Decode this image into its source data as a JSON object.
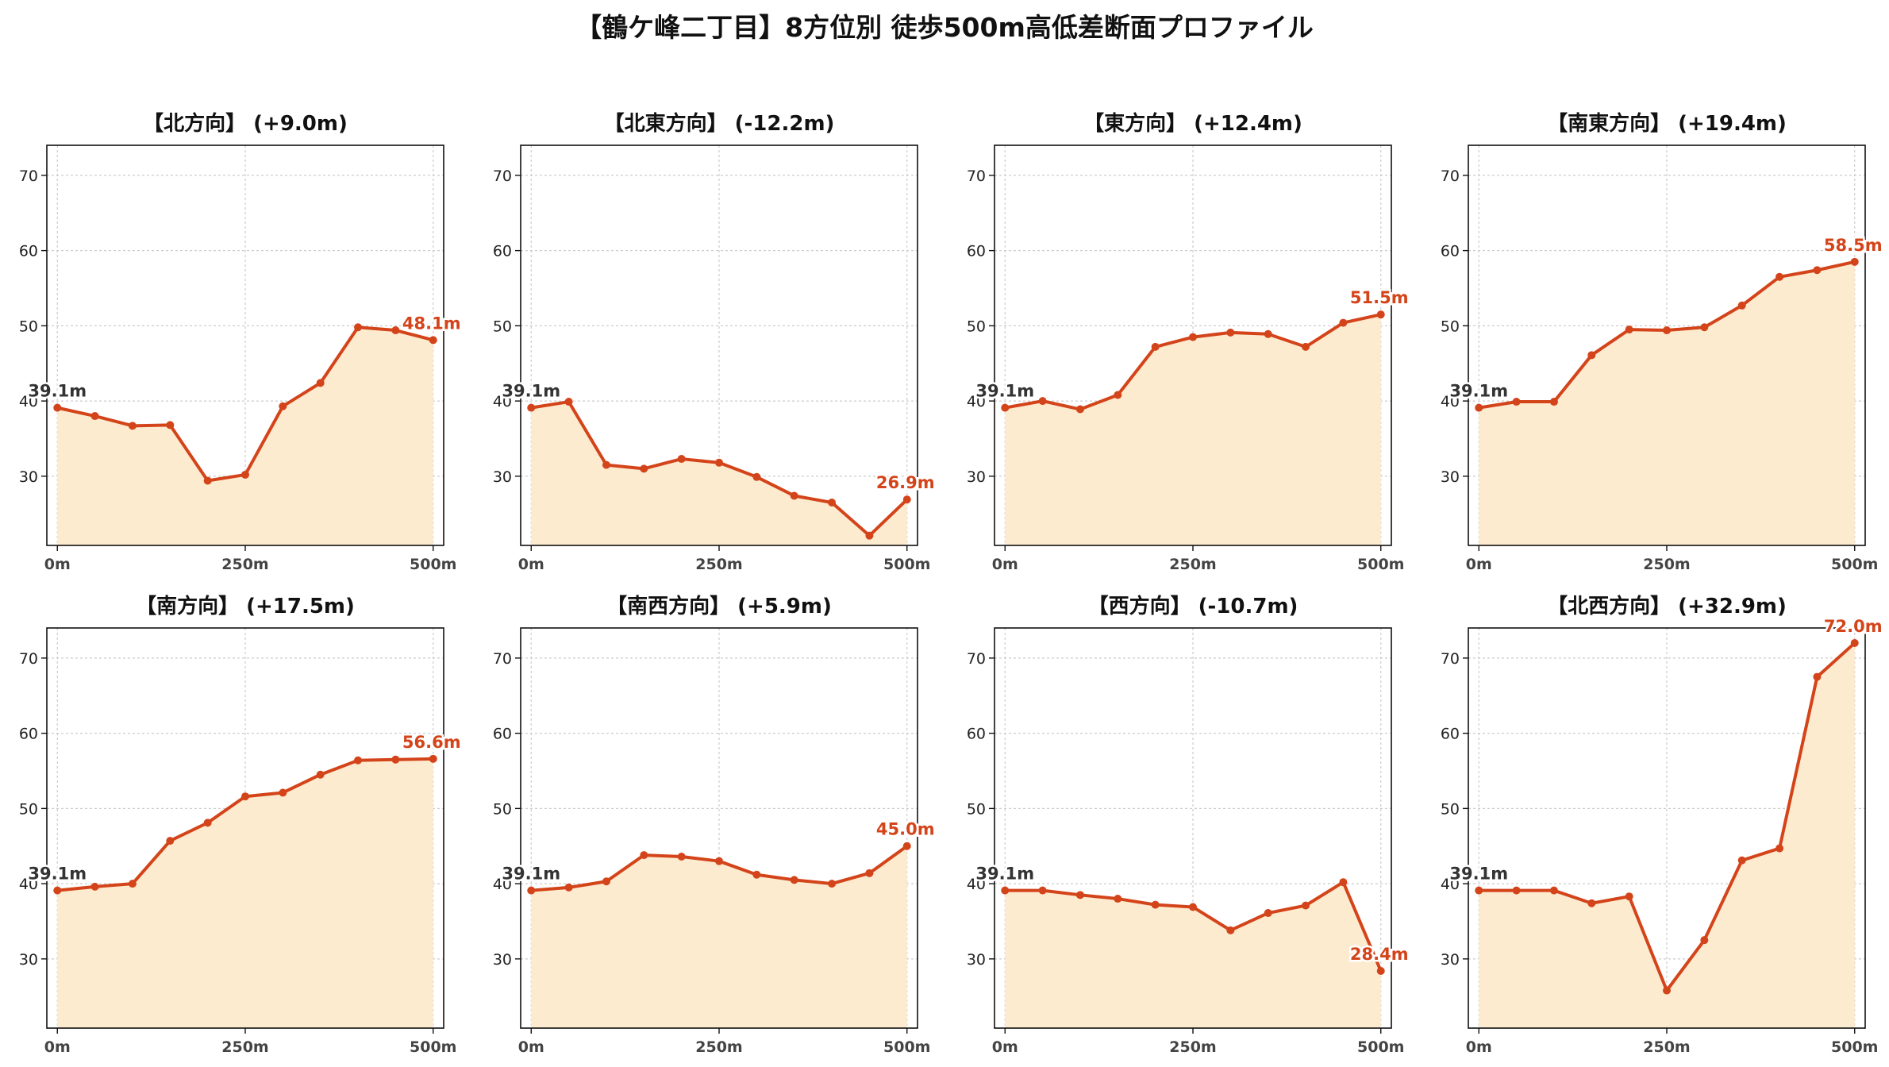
{
  "chart_data": {
    "title": "【鶴ケ峰二丁目】8方位別 徒歩500m高低差断面プロファイル",
    "type": "area",
    "colors": {
      "line": "#d4441a",
      "fill": "#fdebd0",
      "grid": "#cccccc",
      "start_label": "#333333",
      "end_label": "#d4441a"
    },
    "x": [
      0,
      50,
      100,
      150,
      200,
      250,
      300,
      350,
      400,
      450,
      500
    ],
    "xticks": [
      "0m",
      "250m",
      "500m"
    ],
    "xtick_values": [
      0,
      250,
      500
    ],
    "yticks": [
      "30",
      "40",
      "50",
      "60",
      "70"
    ],
    "ytick_values": [
      30,
      40,
      50,
      60,
      70
    ],
    "ylim": [
      20.8,
      74
    ],
    "xlim": [
      -14,
      514
    ],
    "grid": true,
    "panels": [
      {
        "title": "【北方向】 (+9.0m)",
        "start_label": "39.1m",
        "end_label": "48.1m",
        "values": [
          39.1,
          38.0,
          36.7,
          36.8,
          29.4,
          30.2,
          39.3,
          42.4,
          49.8,
          49.4,
          48.1
        ]
      },
      {
        "title": "【北東方向】 (-12.2m)",
        "start_label": "39.1m",
        "end_label": "26.9m",
        "values": [
          39.1,
          39.9,
          31.5,
          31.0,
          32.3,
          31.8,
          29.9,
          27.4,
          26.5,
          22.1,
          26.9
        ]
      },
      {
        "title": "【東方向】 (+12.4m)",
        "start_label": "39.1m",
        "end_label": "51.5m",
        "values": [
          39.1,
          40.0,
          38.9,
          40.8,
          47.2,
          48.5,
          49.1,
          48.9,
          47.2,
          50.4,
          51.5
        ]
      },
      {
        "title": "【南東方向】 (+19.4m)",
        "start_label": "39.1m",
        "end_label": "58.5m",
        "values": [
          39.1,
          39.9,
          39.9,
          46.1,
          49.5,
          49.4,
          49.8,
          52.7,
          56.5,
          57.4,
          58.5
        ]
      },
      {
        "title": "【南方向】 (+17.5m)",
        "start_label": "39.1m",
        "end_label": "56.6m",
        "values": [
          39.1,
          39.6,
          40.0,
          45.7,
          48.1,
          51.6,
          52.1,
          54.5,
          56.4,
          56.5,
          56.6
        ]
      },
      {
        "title": "【南西方向】 (+5.9m)",
        "start_label": "39.1m",
        "end_label": "45.0m",
        "values": [
          39.1,
          39.5,
          40.3,
          43.8,
          43.6,
          43.0,
          41.2,
          40.5,
          40.0,
          41.4,
          45.0
        ]
      },
      {
        "title": "【西方向】 (-10.7m)",
        "start_label": "39.1m",
        "end_label": "28.4m",
        "values": [
          39.1,
          39.1,
          38.5,
          38.0,
          37.2,
          36.9,
          33.8,
          36.1,
          37.1,
          40.2,
          28.4
        ]
      },
      {
        "title": "【北西方向】 (+32.9m)",
        "start_label": "39.1m",
        "end_label": "72.0m",
        "values": [
          39.1,
          39.1,
          39.1,
          37.4,
          38.3,
          25.8,
          32.5,
          43.1,
          44.7,
          67.5,
          72.0
        ]
      }
    ]
  }
}
